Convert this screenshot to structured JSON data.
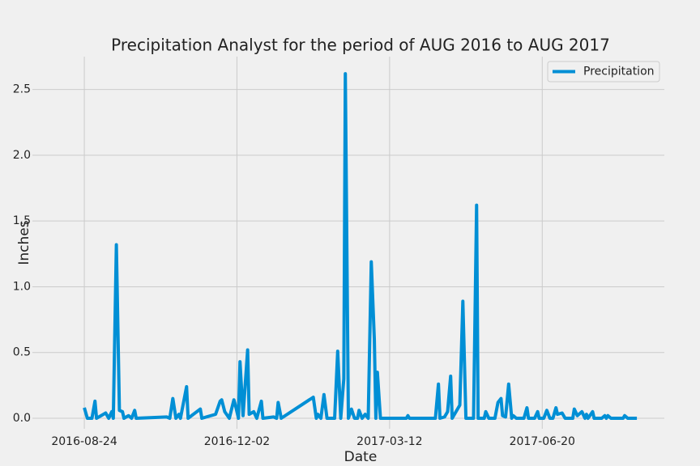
{
  "chart_data": {
    "type": "line",
    "title": "Precipitation Analyst for the period of AUG 2016 to AUG 2017",
    "xlabel": "Date",
    "ylabel": "Inches",
    "x": [
      "2016-08-24",
      "2016-08-26",
      "2016-08-29",
      "2016-08-31",
      "2016-09-01",
      "2016-09-07",
      "2016-09-09",
      "2016-09-11",
      "2016-09-12",
      "2016-09-14",
      "2016-09-16",
      "2016-09-18",
      "2016-09-19",
      "2016-09-22",
      "2016-09-24",
      "2016-09-26",
      "2016-09-27",
      "2016-10-17",
      "2016-10-19",
      "2016-10-21",
      "2016-10-23",
      "2016-10-25",
      "2016-10-26",
      "2016-10-30",
      "2016-10-31",
      "2016-11-08",
      "2016-11-09",
      "2016-11-18",
      "2016-11-21",
      "2016-11-22",
      "2016-11-24",
      "2016-11-27",
      "2016-11-30",
      "2016-12-01",
      "2016-12-03",
      "2016-12-04",
      "2016-12-06",
      "2016-12-09",
      "2016-12-10",
      "2016-12-13",
      "2016-12-15",
      "2016-12-18",
      "2016-12-19",
      "2016-12-26",
      "2016-12-28",
      "2016-12-29",
      "2016-12-31",
      "2017-01-21",
      "2017-01-23",
      "2017-01-24",
      "2017-01-26",
      "2017-01-28",
      "2017-01-30",
      "2017-02-04",
      "2017-02-06",
      "2017-02-08",
      "2017-02-10",
      "2017-02-11",
      "2017-02-13",
      "2017-02-15",
      "2017-02-17",
      "2017-02-19",
      "2017-02-20",
      "2017-02-22",
      "2017-02-24",
      "2017-02-26",
      "2017-02-28",
      "2017-03-02",
      "2017-03-03",
      "2017-03-04",
      "2017-03-06",
      "2017-03-23",
      "2017-03-24",
      "2017-03-25",
      "2017-04-11",
      "2017-04-13",
      "2017-04-14",
      "2017-04-17",
      "2017-04-19",
      "2017-04-21",
      "2017-04-22",
      "2017-04-27",
      "2017-04-29",
      "2017-05-01",
      "2017-05-06",
      "2017-05-08",
      "2017-05-09",
      "2017-05-13",
      "2017-05-14",
      "2017-05-16",
      "2017-05-20",
      "2017-05-22",
      "2017-05-24",
      "2017-05-25",
      "2017-05-27",
      "2017-05-29",
      "2017-05-31",
      "2017-06-01",
      "2017-06-03",
      "2017-06-08",
      "2017-06-10",
      "2017-06-11",
      "2017-06-15",
      "2017-06-17",
      "2017-06-18",
      "2017-06-21",
      "2017-06-23",
      "2017-06-25",
      "2017-06-27",
      "2017-06-29",
      "2017-06-30",
      "2017-07-03",
      "2017-07-05",
      "2017-07-10",
      "2017-07-11",
      "2017-07-13",
      "2017-07-16",
      "2017-07-18",
      "2017-07-19",
      "2017-07-20",
      "2017-07-23",
      "2017-07-24",
      "2017-07-29",
      "2017-07-31",
      "2017-08-01",
      "2017-08-02",
      "2017-08-04",
      "2017-08-12",
      "2017-08-13",
      "2017-08-15",
      "2017-08-21"
    ],
    "series": [
      {
        "name": "Precipitation",
        "color": "#008fd5",
        "values": [
          0.08,
          0,
          0,
          0.13,
          0,
          0.04,
          0,
          0.05,
          0,
          1.32,
          0.06,
          0.05,
          0,
          0.02,
          0,
          0.06,
          0,
          0.01,
          0,
          0.15,
          0,
          0.03,
          0,
          0.24,
          0,
          0.07,
          0,
          0.03,
          0.13,
          0.14,
          0.05,
          0,
          0.14,
          0.1,
          0,
          0.43,
          0.02,
          0.52,
          0.03,
          0.05,
          0,
          0.13,
          0,
          0.01,
          0,
          0.12,
          0,
          0.16,
          0,
          0.03,
          0,
          0.18,
          0,
          0,
          0.51,
          0,
          0.3,
          2.62,
          0,
          0.07,
          0,
          0,
          0.06,
          0,
          0.03,
          0,
          1.19,
          0.6,
          0,
          0.35,
          0,
          0,
          0.02,
          0,
          0,
          0.26,
          0,
          0.01,
          0.05,
          0.32,
          0,
          0.1,
          0.89,
          0,
          0,
          1.62,
          0,
          0,
          0.05,
          0,
          0,
          0.12,
          0.15,
          0.02,
          0.01,
          0.26,
          0,
          0.02,
          0,
          0,
          0.08,
          0,
          0,
          0.05,
          0,
          0,
          0.06,
          0,
          0,
          0.08,
          0.03,
          0.04,
          0,
          0,
          0.07,
          0.02,
          0.05,
          0,
          0.03,
          0,
          0.05,
          0,
          0,
          0.02,
          0,
          0.02,
          0,
          0,
          0.02,
          0,
          0
        ]
      }
    ],
    "xlim": [
      "2016-07-21",
      "2017-09-08"
    ],
    "xticks": [
      "2016-08-24",
      "2016-12-02",
      "2017-03-12",
      "2017-06-20"
    ],
    "ylim": [
      -0.08,
      2.75
    ],
    "yticks": [
      {
        "value": 0,
        "label": "0.0"
      },
      0.5,
      {
        "value": 1,
        "label": "1.0"
      },
      1.5,
      {
        "value": 2,
        "label": "2.0"
      },
      2.5
    ],
    "grid": true,
    "legend": "upper right"
  }
}
